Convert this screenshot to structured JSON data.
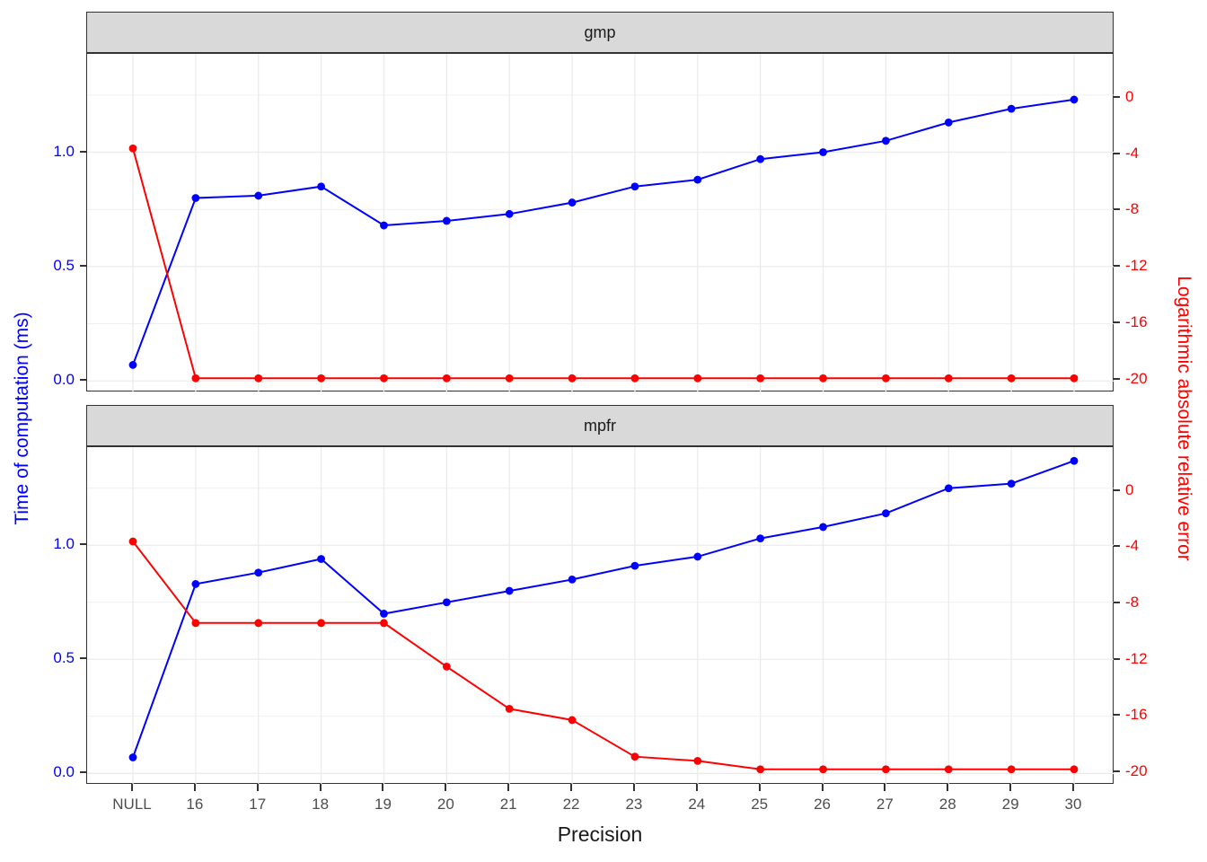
{
  "figure": {
    "left_axis_title": "Time of computation (ms)",
    "right_axis_title": "Logarithmic absolute relative error",
    "xlabel": "Precision",
    "colors": {
      "time": "#0000FF",
      "error": "#FF0000",
      "grid": "#EBEBEB",
      "strip_fill": "#D9D9D9",
      "strip_text": "#1A1A1A",
      "panel_border": "#333333",
      "tick_mark": "#333333",
      "x_tick_text": "#4D4D4D"
    }
  },
  "chart_data": [
    {
      "type": "line",
      "facet": "gmp",
      "categories": [
        "NULL",
        "16",
        "17",
        "18",
        "19",
        "20",
        "21",
        "22",
        "23",
        "24",
        "25",
        "26",
        "27",
        "28",
        "29",
        "30"
      ],
      "series": [
        {
          "name": "Time of computation (ms)",
          "axis": "left",
          "color": "#0000FF",
          "values": [
            0.07,
            0.8,
            0.81,
            0.85,
            0.68,
            0.7,
            0.73,
            0.78,
            0.85,
            0.88,
            0.97,
            1.0,
            1.05,
            1.13,
            1.19,
            1.23
          ]
        },
        {
          "name": "Logarithmic absolute relative error",
          "axis": "right",
          "color": "#FF0000",
          "values": [
            -3.6,
            -19.9,
            -19.9,
            -19.9,
            -19.9,
            -19.9,
            -19.9,
            -19.9,
            -19.9,
            -19.9,
            -19.9,
            -19.9,
            -19.9,
            -19.9,
            -19.9,
            -19.9
          ]
        }
      ],
      "left_axis": {
        "ticks": [
          0.0,
          0.5,
          1.0
        ],
        "tick_labels": [
          "0.0",
          "0.5",
          "1.0"
        ],
        "minor": [
          0.25,
          0.75,
          1.25
        ],
        "range": [
          -0.05,
          1.43
        ]
      },
      "right_axis": {
        "ticks": [
          0,
          -4,
          -8,
          -12,
          -16,
          -20
        ],
        "tick_labels": [
          "0",
          "-4",
          "-8",
          "-12",
          "-16",
          "-20"
        ],
        "range": [
          -20.9,
          3.1
        ]
      },
      "grid": true,
      "legend": "none"
    },
    {
      "type": "line",
      "facet": "mpfr",
      "categories": [
        "NULL",
        "16",
        "17",
        "18",
        "19",
        "20",
        "21",
        "22",
        "23",
        "24",
        "25",
        "26",
        "27",
        "28",
        "29",
        "30"
      ],
      "series": [
        {
          "name": "Time of computation (ms)",
          "axis": "left",
          "color": "#0000FF",
          "values": [
            0.07,
            0.83,
            0.88,
            0.94,
            0.7,
            0.75,
            0.8,
            0.85,
            0.91,
            0.95,
            1.03,
            1.08,
            1.14,
            1.25,
            1.27,
            1.37
          ]
        },
        {
          "name": "Logarithmic absolute relative error",
          "axis": "right",
          "color": "#FF0000",
          "values": [
            -3.6,
            -9.4,
            -9.4,
            -9.4,
            -9.4,
            -12.5,
            -15.5,
            -16.3,
            -18.9,
            -19.2,
            -19.8,
            -19.8,
            -19.8,
            -19.8,
            -19.8,
            -19.8
          ]
        }
      ],
      "left_axis": {
        "ticks": [
          0.0,
          0.5,
          1.0
        ],
        "tick_labels": [
          "0.0",
          "0.5",
          "1.0"
        ],
        "minor": [
          0.25,
          0.75,
          1.25
        ],
        "range": [
          -0.05,
          1.43
        ]
      },
      "right_axis": {
        "ticks": [
          0,
          -4,
          -8,
          -12,
          -16,
          -20
        ],
        "tick_labels": [
          "0",
          "-4",
          "-8",
          "-12",
          "-16",
          "-20"
        ],
        "range": [
          -20.9,
          3.1
        ]
      },
      "grid": true,
      "legend": "none"
    }
  ]
}
